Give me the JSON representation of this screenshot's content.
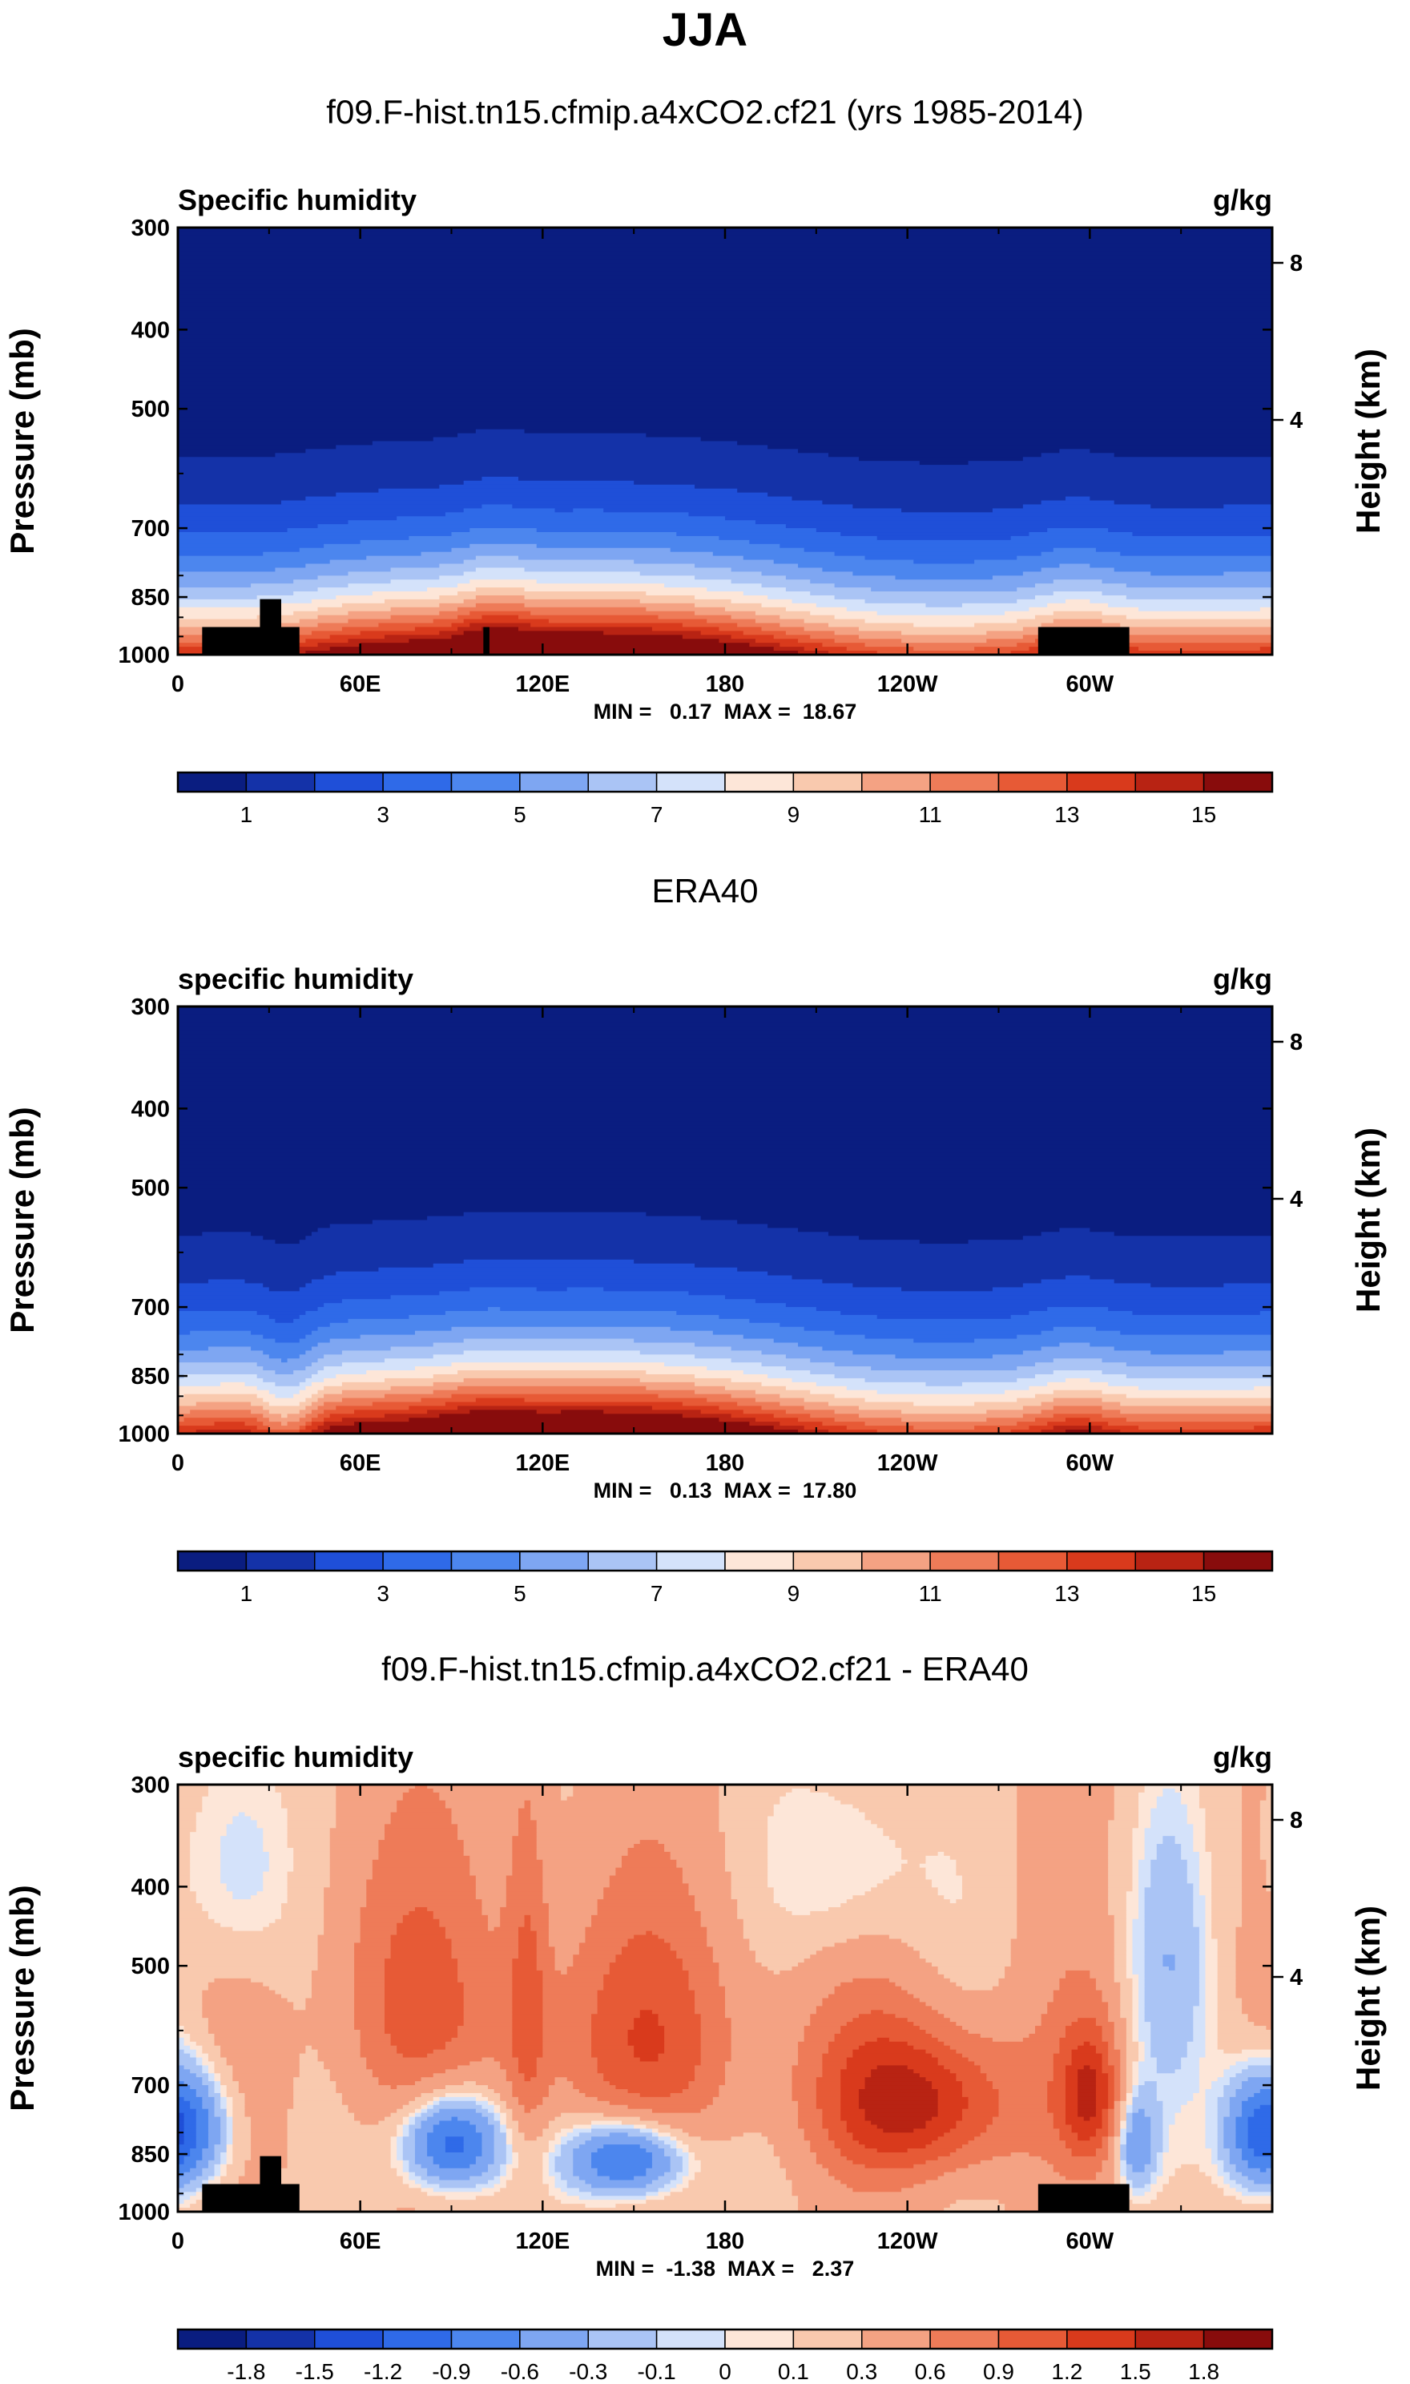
{
  "title": "JJA",
  "chart_data": [
    {
      "type": "heatmap",
      "panel_title": "f09.F-hist.tn15.cfmip.a4xCO2.cf21 (yrs 1985-2014)",
      "left_label": "Specific humidity",
      "right_label": "g/kg",
      "ylabel": "Pressure (mb)",
      "ylabel_right": "Height (km)",
      "x_ticks": [
        "0",
        "60E",
        "120E",
        "180",
        "120W",
        "60W"
      ],
      "y_ticks": [
        "300",
        "400",
        "500",
        "700",
        "850",
        "1000"
      ],
      "y_right_ticks": [
        "8",
        "4"
      ],
      "minmax": "MIN =   0.17  MAX =  18.67",
      "colorbar_labels": [
        "1",
        "3",
        "5",
        "7",
        "9",
        "11",
        "13",
        "15"
      ],
      "variant": "model"
    },
    {
      "type": "heatmap",
      "panel_title": "ERA40",
      "left_label": "specific humidity",
      "right_label": "g/kg",
      "ylabel": "Pressure (mb)",
      "ylabel_right": "Height (km)",
      "x_ticks": [
        "0",
        "60E",
        "120E",
        "180",
        "120W",
        "60W"
      ],
      "y_ticks": [
        "300",
        "400",
        "500",
        "700",
        "850",
        "1000"
      ],
      "y_right_ticks": [
        "8",
        "4"
      ],
      "minmax": "MIN =   0.13  MAX =  17.80",
      "colorbar_labels": [
        "1",
        "3",
        "5",
        "7",
        "9",
        "11",
        "13",
        "15"
      ],
      "variant": "obs"
    },
    {
      "type": "heatmap",
      "panel_title": "f09.F-hist.tn15.cfmip.a4xCO2.cf21 - ERA40",
      "left_label": "specific humidity",
      "right_label": "g/kg",
      "ylabel": "Pressure (mb)",
      "ylabel_right": "Height (km)",
      "x_ticks": [
        "0",
        "60E",
        "120E",
        "180",
        "120W",
        "60W"
      ],
      "y_ticks": [
        "300",
        "400",
        "500",
        "700",
        "850",
        "1000"
      ],
      "y_right_ticks": [
        "8",
        "4"
      ],
      "minmax": "MIN =  -1.38  MAX =   2.37",
      "colorbar_labels": [
        "-1.8",
        "-1.5",
        "-1.2",
        "-0.9",
        "-0.6",
        "-0.3",
        "-0.1",
        "0",
        "0.1",
        "0.3",
        "0.6",
        "0.9",
        "1.2",
        "1.5",
        "1.8"
      ],
      "variant": "diff"
    }
  ],
  "colors": {
    "palette": [
      "#0a1d80",
      "#1432a8",
      "#1f4fd8",
      "#2f6ae8",
      "#4c86ee",
      "#7ea6f2",
      "#aac4f5",
      "#d4e2fa",
      "#fde6d8",
      "#f9c9ae",
      "#f4a283",
      "#ee7b58",
      "#e75a36",
      "#d93a1c",
      "#b82313",
      "#880c0c"
    ],
    "land": "#000000"
  }
}
